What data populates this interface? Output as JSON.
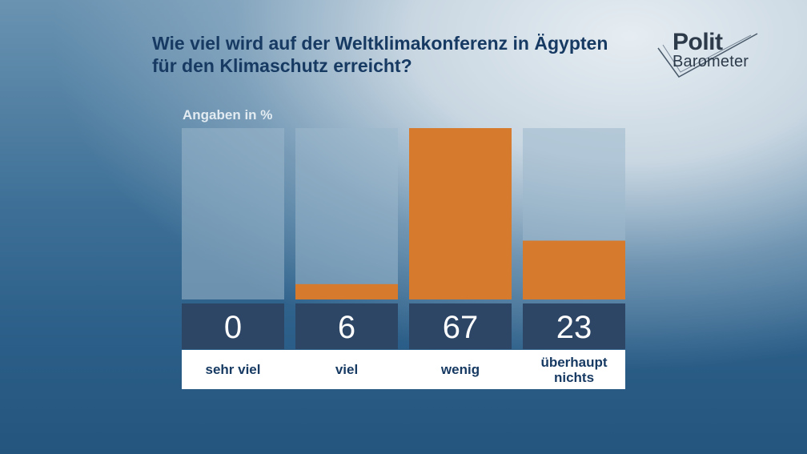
{
  "title_lines": [
    "Wie viel wird auf der Weltklimakonferenz in Ägypten",
    "für den Klimaschutz erreicht?"
  ],
  "logo": {
    "line1": "Polit",
    "line2": "Barometer"
  },
  "colors": {
    "bar": "#d67a2e",
    "track": "#9cb8cc",
    "value_box": "#2d4666",
    "value_text": "#ffffff",
    "label_text": "#173a63"
  },
  "chart_data": {
    "type": "bar",
    "unit_label": "Angaben in %",
    "categories": [
      "sehr viel",
      "viel",
      "wenig",
      "überhaupt nichts"
    ],
    "values": [
      0,
      6,
      67,
      23
    ],
    "ylim": [
      0,
      67
    ]
  }
}
